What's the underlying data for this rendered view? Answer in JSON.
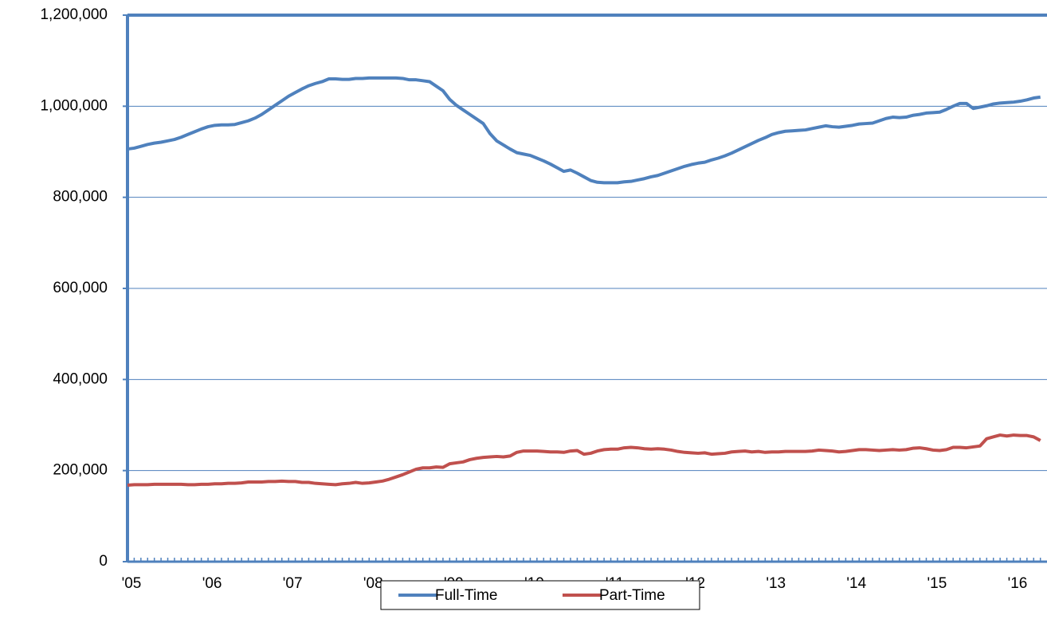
{
  "chart_data": {
    "type": "line",
    "categories": [
      "'05",
      null,
      null,
      null,
      null,
      null,
      null,
      null,
      null,
      null,
      null,
      null,
      "'06",
      null,
      null,
      null,
      null,
      null,
      null,
      null,
      null,
      null,
      null,
      null,
      "'07",
      null,
      null,
      null,
      null,
      null,
      null,
      null,
      null,
      null,
      null,
      null,
      "'08",
      null,
      null,
      null,
      null,
      null,
      null,
      null,
      null,
      null,
      null,
      null,
      "'09",
      null,
      null,
      null,
      null,
      null,
      null,
      null,
      null,
      null,
      null,
      null,
      "'10",
      null,
      null,
      null,
      null,
      null,
      null,
      null,
      null,
      null,
      null,
      null,
      "'11",
      null,
      null,
      null,
      null,
      null,
      null,
      null,
      null,
      null,
      null,
      null,
      "'12",
      null,
      null,
      null,
      null,
      null,
      null,
      null,
      null,
      null,
      null,
      null,
      "'13",
      null,
      null,
      null,
      null,
      null,
      null,
      null,
      null,
      null,
      null,
      null,
      "'14",
      null,
      null,
      null,
      null,
      null,
      null,
      null,
      null,
      null,
      null,
      null,
      "'15",
      null,
      null,
      null,
      null,
      null,
      null,
      null,
      null,
      null,
      null,
      null,
      "'16",
      null,
      null,
      null,
      null
    ],
    "series": [
      {
        "name": "Full-Time",
        "color": "#4f81bd",
        "values": [
          906000,
          908000,
          912000,
          916000,
          919000,
          921000,
          924000,
          927000,
          932000,
          938000,
          944000,
          950000,
          955000,
          958000,
          959000,
          959000,
          960000,
          964000,
          968000,
          974000,
          982000,
          992000,
          1002000,
          1012000,
          1022000,
          1030000,
          1038000,
          1045000,
          1050000,
          1054000,
          1060000,
          1060000,
          1059000,
          1059000,
          1061000,
          1061000,
          1062000,
          1062000,
          1062000,
          1062000,
          1062000,
          1061000,
          1058000,
          1058000,
          1056000,
          1054000,
          1044000,
          1034000,
          1015000,
          1002000,
          992000,
          982000,
          972000,
          962000,
          940000,
          924000,
          915000,
          906000,
          898000,
          895000,
          892000,
          886000,
          880000,
          873000,
          865000,
          857000,
          860000,
          853000,
          845000,
          837000,
          833000,
          832000,
          832000,
          832000,
          834000,
          835000,
          838000,
          841000,
          845000,
          848000,
          853000,
          858000,
          863000,
          868000,
          872000,
          875000,
          877000,
          882000,
          886000,
          891000,
          897000,
          904000,
          911000,
          918000,
          925000,
          931000,
          938000,
          942000,
          945000,
          946000,
          947000,
          948000,
          951000,
          954000,
          957000,
          955000,
          954000,
          956000,
          958000,
          961000,
          962000,
          963000,
          968000,
          973000,
          976000,
          975000,
          976000,
          980000,
          982000,
          985000,
          986000,
          987000,
          993000,
          1000000,
          1006000,
          1006000,
          995000,
          998000,
          1001000,
          1005000,
          1007000,
          1008000,
          1009000,
          1011000,
          1014000,
          1018000,
          1020000
        ]
      },
      {
        "name": "Part-Time",
        "color": "#c0504d",
        "values": [
          168000,
          169000,
          169000,
          169000,
          170000,
          170000,
          170000,
          170000,
          170000,
          169000,
          169000,
          170000,
          170000,
          171000,
          171000,
          172000,
          172000,
          173000,
          175000,
          175000,
          175000,
          176000,
          176000,
          177000,
          176000,
          176000,
          174000,
          174000,
          172000,
          171000,
          170000,
          169000,
          171000,
          172000,
          174000,
          172000,
          173000,
          175000,
          177000,
          181000,
          186000,
          191000,
          197000,
          203000,
          206000,
          206000,
          208000,
          207000,
          215000,
          217000,
          219000,
          224000,
          227000,
          229000,
          230000,
          231000,
          230000,
          232000,
          240000,
          243000,
          243000,
          243000,
          242000,
          241000,
          241000,
          240000,
          243000,
          244000,
          236000,
          238000,
          243000,
          246000,
          247000,
          247000,
          250000,
          251000,
          250000,
          248000,
          247000,
          248000,
          247000,
          245000,
          242000,
          240000,
          239000,
          238000,
          239000,
          236000,
          237000,
          238000,
          241000,
          242000,
          243000,
          241000,
          242000,
          240000,
          241000,
          241000,
          242000,
          242000,
          242000,
          242000,
          243000,
          245000,
          244000,
          243000,
          241000,
          242000,
          244000,
          246000,
          246000,
          245000,
          244000,
          245000,
          246000,
          245000,
          246000,
          249000,
          250000,
          248000,
          245000,
          244000,
          246000,
          251000,
          251000,
          250000,
          252000,
          254000,
          270000,
          274000,
          278000,
          276000,
          278000,
          277000,
          277000,
          274000,
          266000
        ]
      }
    ],
    "ylim": [
      0,
      1200000
    ],
    "yticks": [
      0,
      {
        "value": 200000,
        "label": "200,000"
      },
      {
        "value": 400000,
        "label": "400,000"
      },
      {
        "value": 600000,
        "label": "600,000"
      },
      {
        "value": 800000,
        "label": "800,000"
      },
      {
        "value": 1000000,
        "label": "1,000,000"
      },
      {
        "value": 1200000,
        "label": "1,200,000"
      }
    ],
    "grid": true,
    "legend": "bottom"
  }
}
